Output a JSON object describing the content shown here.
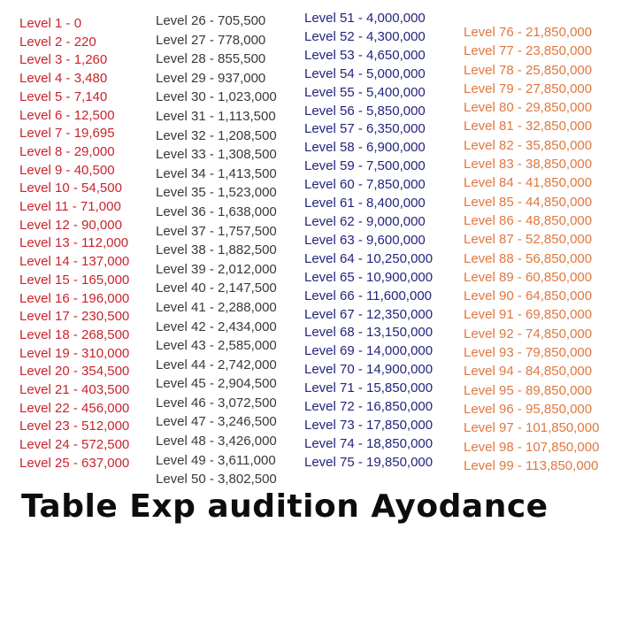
{
  "title": {
    "text": "Table Exp audition Ayodance",
    "color": "#0d0d0d"
  },
  "entry_template": "Level {level} - {exp}",
  "page_background": "#ffffff",
  "groups": [
    {
      "name": "levels-1-25",
      "start": 1,
      "end": 25,
      "color": "#c9232b"
    },
    {
      "name": "levels-26-50",
      "start": 26,
      "end": 50,
      "color": "#383838"
    },
    {
      "name": "levels-51-75",
      "start": 51,
      "end": 75,
      "color": "#23237f"
    },
    {
      "name": "levels-76-99",
      "start": 76,
      "end": 99,
      "color": "#e0773e"
    }
  ],
  "chart_data": {
    "type": "table",
    "title": "Table Exp audition Ayodance",
    "columns": [
      "Level",
      "Exp"
    ],
    "rows": [
      [
        1,
        0
      ],
      [
        2,
        220
      ],
      [
        3,
        1260
      ],
      [
        4,
        3480
      ],
      [
        5,
        7140
      ],
      [
        6,
        12500
      ],
      [
        7,
        19695
      ],
      [
        8,
        29000
      ],
      [
        9,
        40500
      ],
      [
        10,
        54500
      ],
      [
        11,
        71000
      ],
      [
        12,
        90000
      ],
      [
        13,
        112000
      ],
      [
        14,
        137000
      ],
      [
        15,
        165000
      ],
      [
        16,
        196000
      ],
      [
        17,
        230500
      ],
      [
        18,
        268500
      ],
      [
        19,
        310000
      ],
      [
        20,
        354500
      ],
      [
        21,
        403500
      ],
      [
        22,
        456000
      ],
      [
        23,
        512000
      ],
      [
        24,
        572500
      ],
      [
        25,
        637000
      ],
      [
        26,
        705500
      ],
      [
        27,
        778000
      ],
      [
        28,
        855500
      ],
      [
        29,
        937000
      ],
      [
        30,
        1023000
      ],
      [
        31,
        1113500
      ],
      [
        32,
        1208500
      ],
      [
        33,
        1308500
      ],
      [
        34,
        1413500
      ],
      [
        35,
        1523000
      ],
      [
        36,
        1638000
      ],
      [
        37,
        1757500
      ],
      [
        38,
        1882500
      ],
      [
        39,
        2012000
      ],
      [
        40,
        2147500
      ],
      [
        41,
        2288000
      ],
      [
        42,
        2434000
      ],
      [
        43,
        2585000
      ],
      [
        44,
        2742000
      ],
      [
        45,
        2904500
      ],
      [
        46,
        3072500
      ],
      [
        47,
        3246500
      ],
      [
        48,
        3426000
      ],
      [
        49,
        3611000
      ],
      [
        50,
        3802500
      ],
      [
        51,
        4000000
      ],
      [
        52,
        4300000
      ],
      [
        53,
        4650000
      ],
      [
        54,
        5000000
      ],
      [
        55,
        5400000
      ],
      [
        56,
        5850000
      ],
      [
        57,
        6350000
      ],
      [
        58,
        6900000
      ],
      [
        59,
        7500000
      ],
      [
        60,
        7850000
      ],
      [
        61,
        8400000
      ],
      [
        62,
        9000000
      ],
      [
        63,
        9600000
      ],
      [
        64,
        10250000
      ],
      [
        65,
        10900000
      ],
      [
        66,
        11600000
      ],
      [
        67,
        12350000
      ],
      [
        68,
        13150000
      ],
      [
        69,
        14000000
      ],
      [
        70,
        14900000
      ],
      [
        71,
        15850000
      ],
      [
        72,
        16850000
      ],
      [
        73,
        17850000
      ],
      [
        74,
        18850000
      ],
      [
        75,
        19850000
      ],
      [
        76,
        21850000
      ],
      [
        77,
        23850000
      ],
      [
        78,
        25850000
      ],
      [
        79,
        27850000
      ],
      [
        80,
        29850000
      ],
      [
        81,
        32850000
      ],
      [
        82,
        35850000
      ],
      [
        83,
        38850000
      ],
      [
        84,
        41850000
      ],
      [
        85,
        44850000
      ],
      [
        86,
        48850000
      ],
      [
        87,
        52850000
      ],
      [
        88,
        56850000
      ],
      [
        89,
        60850000
      ],
      [
        90,
        64850000
      ],
      [
        91,
        69850000
      ],
      [
        92,
        74850000
      ],
      [
        93,
        79850000
      ],
      [
        94,
        84850000
      ],
      [
        95,
        89850000
      ],
      [
        96,
        95850000
      ],
      [
        97,
        101850000
      ],
      [
        98,
        107850000
      ],
      [
        99,
        113850000
      ]
    ]
  }
}
